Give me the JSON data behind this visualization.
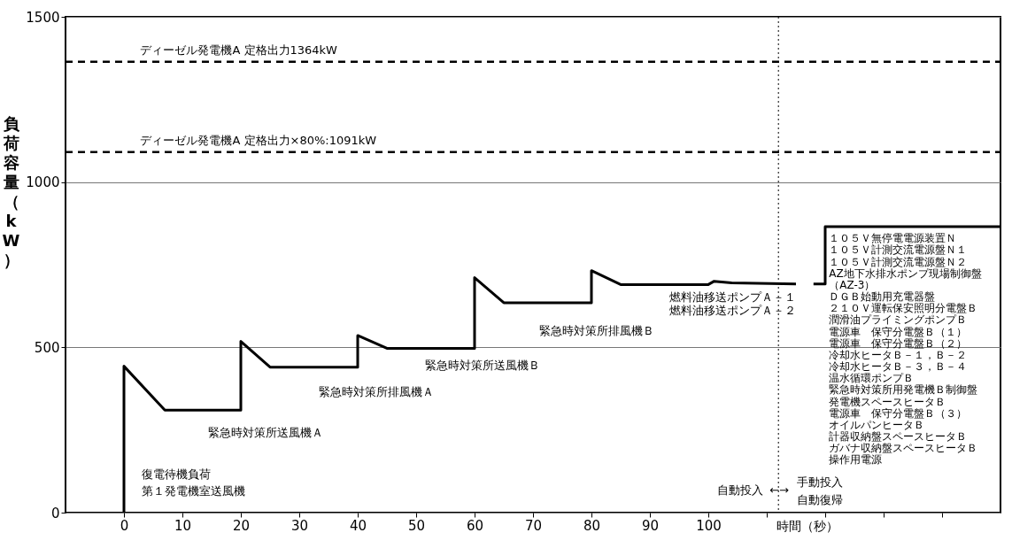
{
  "chart_data": {
    "type": "line",
    "xlabel": "時間（秒）",
    "ylabel": "負荷容量（kW）",
    "xlim": [
      -10,
      150
    ],
    "ylim": [
      0,
      1500
    ],
    "xticks": [
      0,
      10,
      20,
      30,
      40,
      50,
      60,
      70,
      80,
      90,
      100,
      {
        "value": 110,
        "label": null
      },
      {
        "value": 120,
        "label": null
      },
      {
        "value": 130,
        "label": null
      },
      {
        "value": 140,
        "label": null
      }
    ],
    "yticks": [
      0,
      500,
      1000,
      1500
    ],
    "grid": "y",
    "marker": "none",
    "line_style": "solid",
    "series": [
      {
        "color": "#000000",
        "x": [
          0,
          0,
          7,
          20,
          20,
          25,
          40,
          40,
          45,
          60,
          60,
          65,
          80,
          80,
          85,
          100,
          101,
          104,
          115,
          116,
          118,
          120,
          120,
          150
        ],
        "values": [
          0,
          443,
          310,
          310,
          518,
          440,
          440,
          536,
          497,
          497,
          711,
          635,
          635,
          732,
          690,
          690,
          700,
          695,
          692,
          null,
          692,
          692,
          865,
          865
        ]
      }
    ],
    "ref_lines": [
      {
        "axis": "y",
        "value": 1364,
        "label": "ディーゼル発電機A  定格出力1364kW",
        "color": "#000000",
        "line_style": "dashed"
      },
      {
        "axis": "y",
        "value": 1091,
        "label": "ディーゼル発電機A 定格出力×80%:1091kW",
        "color": "#000000",
        "line_style": "dashed"
      },
      {
        "axis": "x",
        "value": 112,
        "label": null,
        "color": "#000000",
        "line_style": "dotted"
      }
    ],
    "annotations": [
      "復電待機負荷",
      "第１発電機室送風機",
      "緊急時対策所送風機Ａ",
      "緊急時対策所排風機Ａ",
      "緊急時対策所送風機Ｂ",
      "緊急時対策所排風機Ｂ",
      "燃料油移送ポンプＡ－１",
      "燃料油移送ポンプＡ－２",
      "１０５Ｖ無停電電源装置Ｎ",
      "１０５Ｖ計測交流電源盤Ｎ１",
      "１０５Ｖ計測交流電源盤Ｎ２",
      "AZ地下水排水ポンプ現場制御盤（AZ-3）",
      "ＤＧＢ始動用充電器盤",
      "２１０Ｖ運転保安照明分電盤Ｂ",
      "潤滑油プライミングポンプＢ",
      "電源車　保守分電盤Ｂ（１）",
      "電源車　保守分電盤Ｂ（２）",
      "冷却水ヒータＢ－１，Ｂ－２",
      "冷却水ヒータＢ－３，Ｂ－４",
      "温水循環ポンプＢ",
      "緊急時対策所用発電機Ｂ制御盤",
      "発電機スペースヒータＢ",
      "電源車　保守分電盤Ｂ（３）",
      "オイルパンヒータＢ",
      "計器収納盤スペースヒータＢ",
      "ガバナ収納盤スペースヒータＢ",
      "操作用電源",
      "自動投入",
      "←→",
      "手動投入",
      "自動復帰"
    ]
  }
}
